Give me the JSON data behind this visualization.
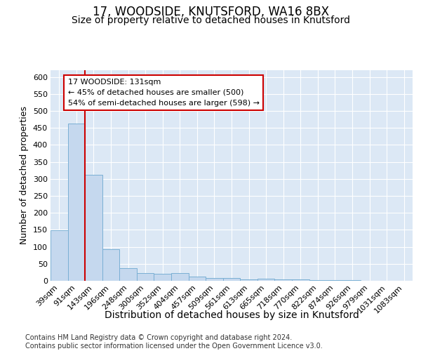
{
  "title": "17, WOODSIDE, KNUTSFORD, WA16 8BX",
  "subtitle": "Size of property relative to detached houses in Knutsford",
  "xlabel": "Distribution of detached houses by size in Knutsford",
  "ylabel": "Number of detached properties",
  "categories": [
    "39sqm",
    "91sqm",
    "143sqm",
    "196sqm",
    "248sqm",
    "300sqm",
    "352sqm",
    "404sqm",
    "457sqm",
    "509sqm",
    "561sqm",
    "613sqm",
    "665sqm",
    "718sqm",
    "770sqm",
    "822sqm",
    "874sqm",
    "926sqm",
    "979sqm",
    "1031sqm",
    "1083sqm"
  ],
  "values": [
    148,
    462,
    312,
    93,
    37,
    22,
    20,
    22,
    12,
    8,
    9,
    5,
    6,
    5,
    4,
    3,
    3,
    2,
    1,
    1,
    1
  ],
  "bar_color": "#c5d8ee",
  "bar_edge_color": "#7aafd4",
  "vline_color": "#cc0000",
  "vline_x_index": 2,
  "annotation_text": "17 WOODSIDE: 131sqm\n← 45% of detached houses are smaller (500)\n54% of semi-detached houses are larger (598) →",
  "annotation_box_facecolor": "white",
  "annotation_box_edgecolor": "#cc0000",
  "ylim": [
    0,
    620
  ],
  "yticks": [
    0,
    50,
    100,
    150,
    200,
    250,
    300,
    350,
    400,
    450,
    500,
    550,
    600
  ],
  "background_color": "#dce8f5",
  "grid_color": "white",
  "footer": "Contains HM Land Registry data © Crown copyright and database right 2024.\nContains public sector information licensed under the Open Government Licence v3.0.",
  "title_fontsize": 12,
  "subtitle_fontsize": 10,
  "xlabel_fontsize": 10,
  "ylabel_fontsize": 9,
  "tick_fontsize": 8,
  "footer_fontsize": 7,
  "annotation_fontsize": 8
}
